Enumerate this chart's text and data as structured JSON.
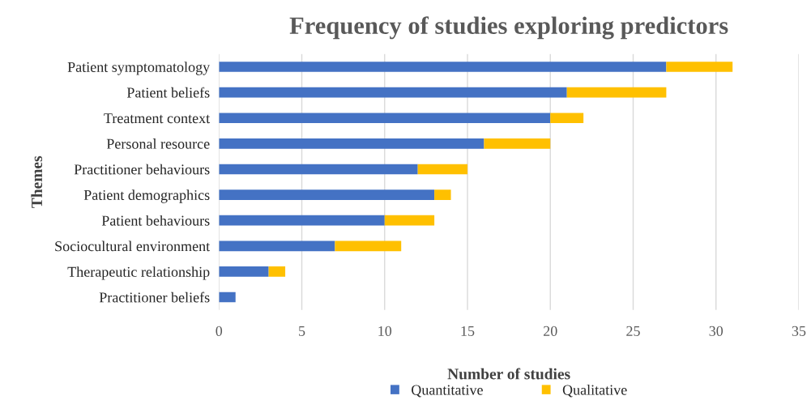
{
  "chart_data": {
    "type": "bar",
    "orientation": "horizontal",
    "stacked": true,
    "title": "Frequency of studies exploring predictors",
    "xlabel": "Number of studies",
    "ylabel": "Themes",
    "categories": [
      "Patient symptomatology",
      "Patient beliefs",
      "Treatment context",
      "Personal resource",
      "Practitioner behaviours",
      "Patient demographics",
      "Patient behaviours",
      "Sociocultural environment",
      "Therapeutic relationship",
      "Practitioner beliefs"
    ],
    "series": [
      {
        "name": "Quantitative",
        "color": "#4472c4",
        "values": [
          27,
          21,
          20,
          16,
          12,
          13,
          10,
          7,
          3,
          1
        ]
      },
      {
        "name": "Qualitative",
        "color": "#ffc000",
        "values": [
          4,
          6,
          2,
          4,
          3,
          1,
          3,
          4,
          1,
          0
        ]
      }
    ],
    "xlim": [
      0,
      35
    ],
    "xticks": [
      0,
      5,
      10,
      15,
      20,
      25,
      30,
      35
    ],
    "grid": "x",
    "legend": "bottom"
  }
}
